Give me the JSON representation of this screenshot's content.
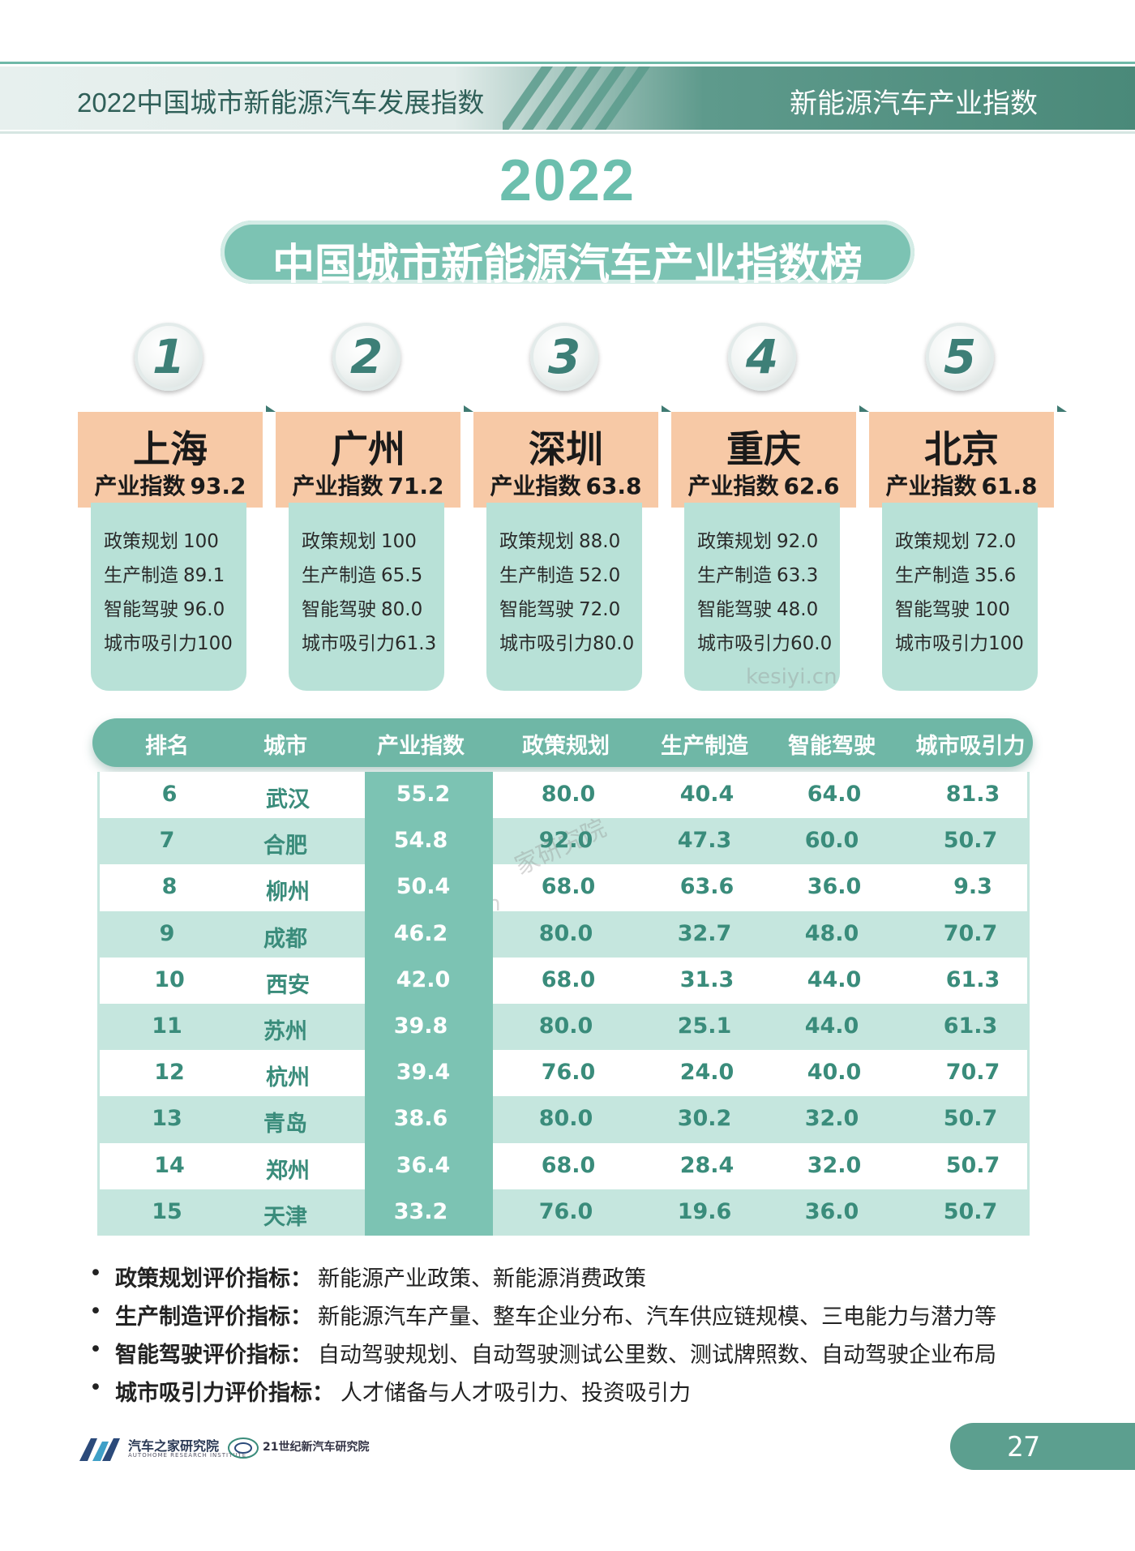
{
  "header": {
    "left_title": "2022中国城市新能源汽车发展指数",
    "right_title": "新能源汽车产业指数"
  },
  "title": {
    "year": "2022",
    "main": "中国城市新能源汽车产业指数榜"
  },
  "top5": [
    {
      "rank": "1",
      "city": "上海",
      "index_label": "产业指数",
      "index": "93.2",
      "policy_label": "政策规划",
      "policy": "100",
      "manufacturing_label": "生产制造",
      "manufacturing": "89.1",
      "driving_label": "智能驾驶",
      "driving": "96.0",
      "attraction_label": "城市吸引力",
      "attraction": "100"
    },
    {
      "rank": "2",
      "city": "广州",
      "index_label": "产业指数",
      "index": "71.2",
      "policy_label": "政策规划",
      "policy": "100",
      "manufacturing_label": "生产制造",
      "manufacturing": "65.5",
      "driving_label": "智能驾驶",
      "driving": "80.0",
      "attraction_label": "城市吸引力",
      "attraction": "61.3"
    },
    {
      "rank": "3",
      "city": "深圳",
      "index_label": "产业指数",
      "index": "63.8",
      "policy_label": "政策规划",
      "policy": "88.0",
      "manufacturing_label": "生产制造",
      "manufacturing": "52.0",
      "driving_label": "智能驾驶",
      "driving": "72.0",
      "attraction_label": "城市吸引力",
      "attraction": "80.0"
    },
    {
      "rank": "4",
      "city": "重庆",
      "index_label": "产业指数",
      "index": "62.6",
      "policy_label": "政策规划",
      "policy": "92.0",
      "manufacturing_label": "生产制造",
      "manufacturing": "63.3",
      "driving_label": "智能驾驶",
      "driving": "48.0",
      "attraction_label": "城市吸引力",
      "attraction": "60.0"
    },
    {
      "rank": "5",
      "city": "北京",
      "index_label": "产业指数",
      "index": "61.8",
      "policy_label": "政策规划",
      "policy": "72.0",
      "manufacturing_label": "生产制造",
      "manufacturing": "35.6",
      "driving_label": "智能驾驶",
      "driving": "100",
      "attraction_label": "城市吸引力",
      "attraction": "100"
    }
  ],
  "table": {
    "headers": [
      "排名",
      "城市",
      "产业指数",
      "政策规划",
      "生产制造",
      "智能驾驶",
      "城市吸引力"
    ],
    "rows": [
      [
        "6",
        "武汉",
        "55.2",
        "80.0",
        "40.4",
        "64.0",
        "81.3"
      ],
      [
        "7",
        "合肥",
        "54.8",
        "92.0",
        "47.3",
        "60.0",
        "50.7"
      ],
      [
        "8",
        "柳州",
        "50.4",
        "68.0",
        "63.6",
        "36.0",
        "9.3"
      ],
      [
        "9",
        "成都",
        "46.2",
        "80.0",
        "32.7",
        "48.0",
        "70.7"
      ],
      [
        "10",
        "西安",
        "42.0",
        "68.0",
        "31.3",
        "44.0",
        "61.3"
      ],
      [
        "11",
        "苏州",
        "39.8",
        "80.0",
        "25.1",
        "44.0",
        "61.3"
      ],
      [
        "12",
        "杭州",
        "39.4",
        "76.0",
        "24.0",
        "40.0",
        "70.7"
      ],
      [
        "13",
        "青岛",
        "38.6",
        "80.0",
        "30.2",
        "32.0",
        "50.7"
      ],
      [
        "14",
        "郑州",
        "36.4",
        "68.0",
        "28.4",
        "32.0",
        "50.7"
      ],
      [
        "15",
        "天津",
        "33.2",
        "76.0",
        "19.6",
        "36.0",
        "50.7"
      ]
    ]
  },
  "notes": [
    {
      "label": "政策规划评价指标：",
      "text": "新能源产业政策、新能源消费政策"
    },
    {
      "label": "生产制造评价指标：",
      "text": "新能源汽车产量、整车企业分布、汽车供应链规模、三电能力与潜力等"
    },
    {
      "label": "智能驾驶评价指标：",
      "text": "自动驾驶规划、自动驾驶测试公里数、测试牌照数、自动驾驶企业布局"
    },
    {
      "label": "城市吸引力评价指标：",
      "text": "人才储备与人才吸引力、投资吸引力"
    }
  ],
  "footer": {
    "org1": "汽车之家研究院",
    "org1_sub": "AUTOHOME RESEARCH INSTITUTE",
    "org2": "21世纪新汽车研究院",
    "page": "27"
  },
  "watermark": [
    "kesiyi.cn",
    "家研究院"
  ],
  "colors": {
    "teal": "#6fb7a6",
    "teal_light": "#c5e6de",
    "peach": "#f7c9a6",
    "text_teal": "#3a8c7b"
  }
}
